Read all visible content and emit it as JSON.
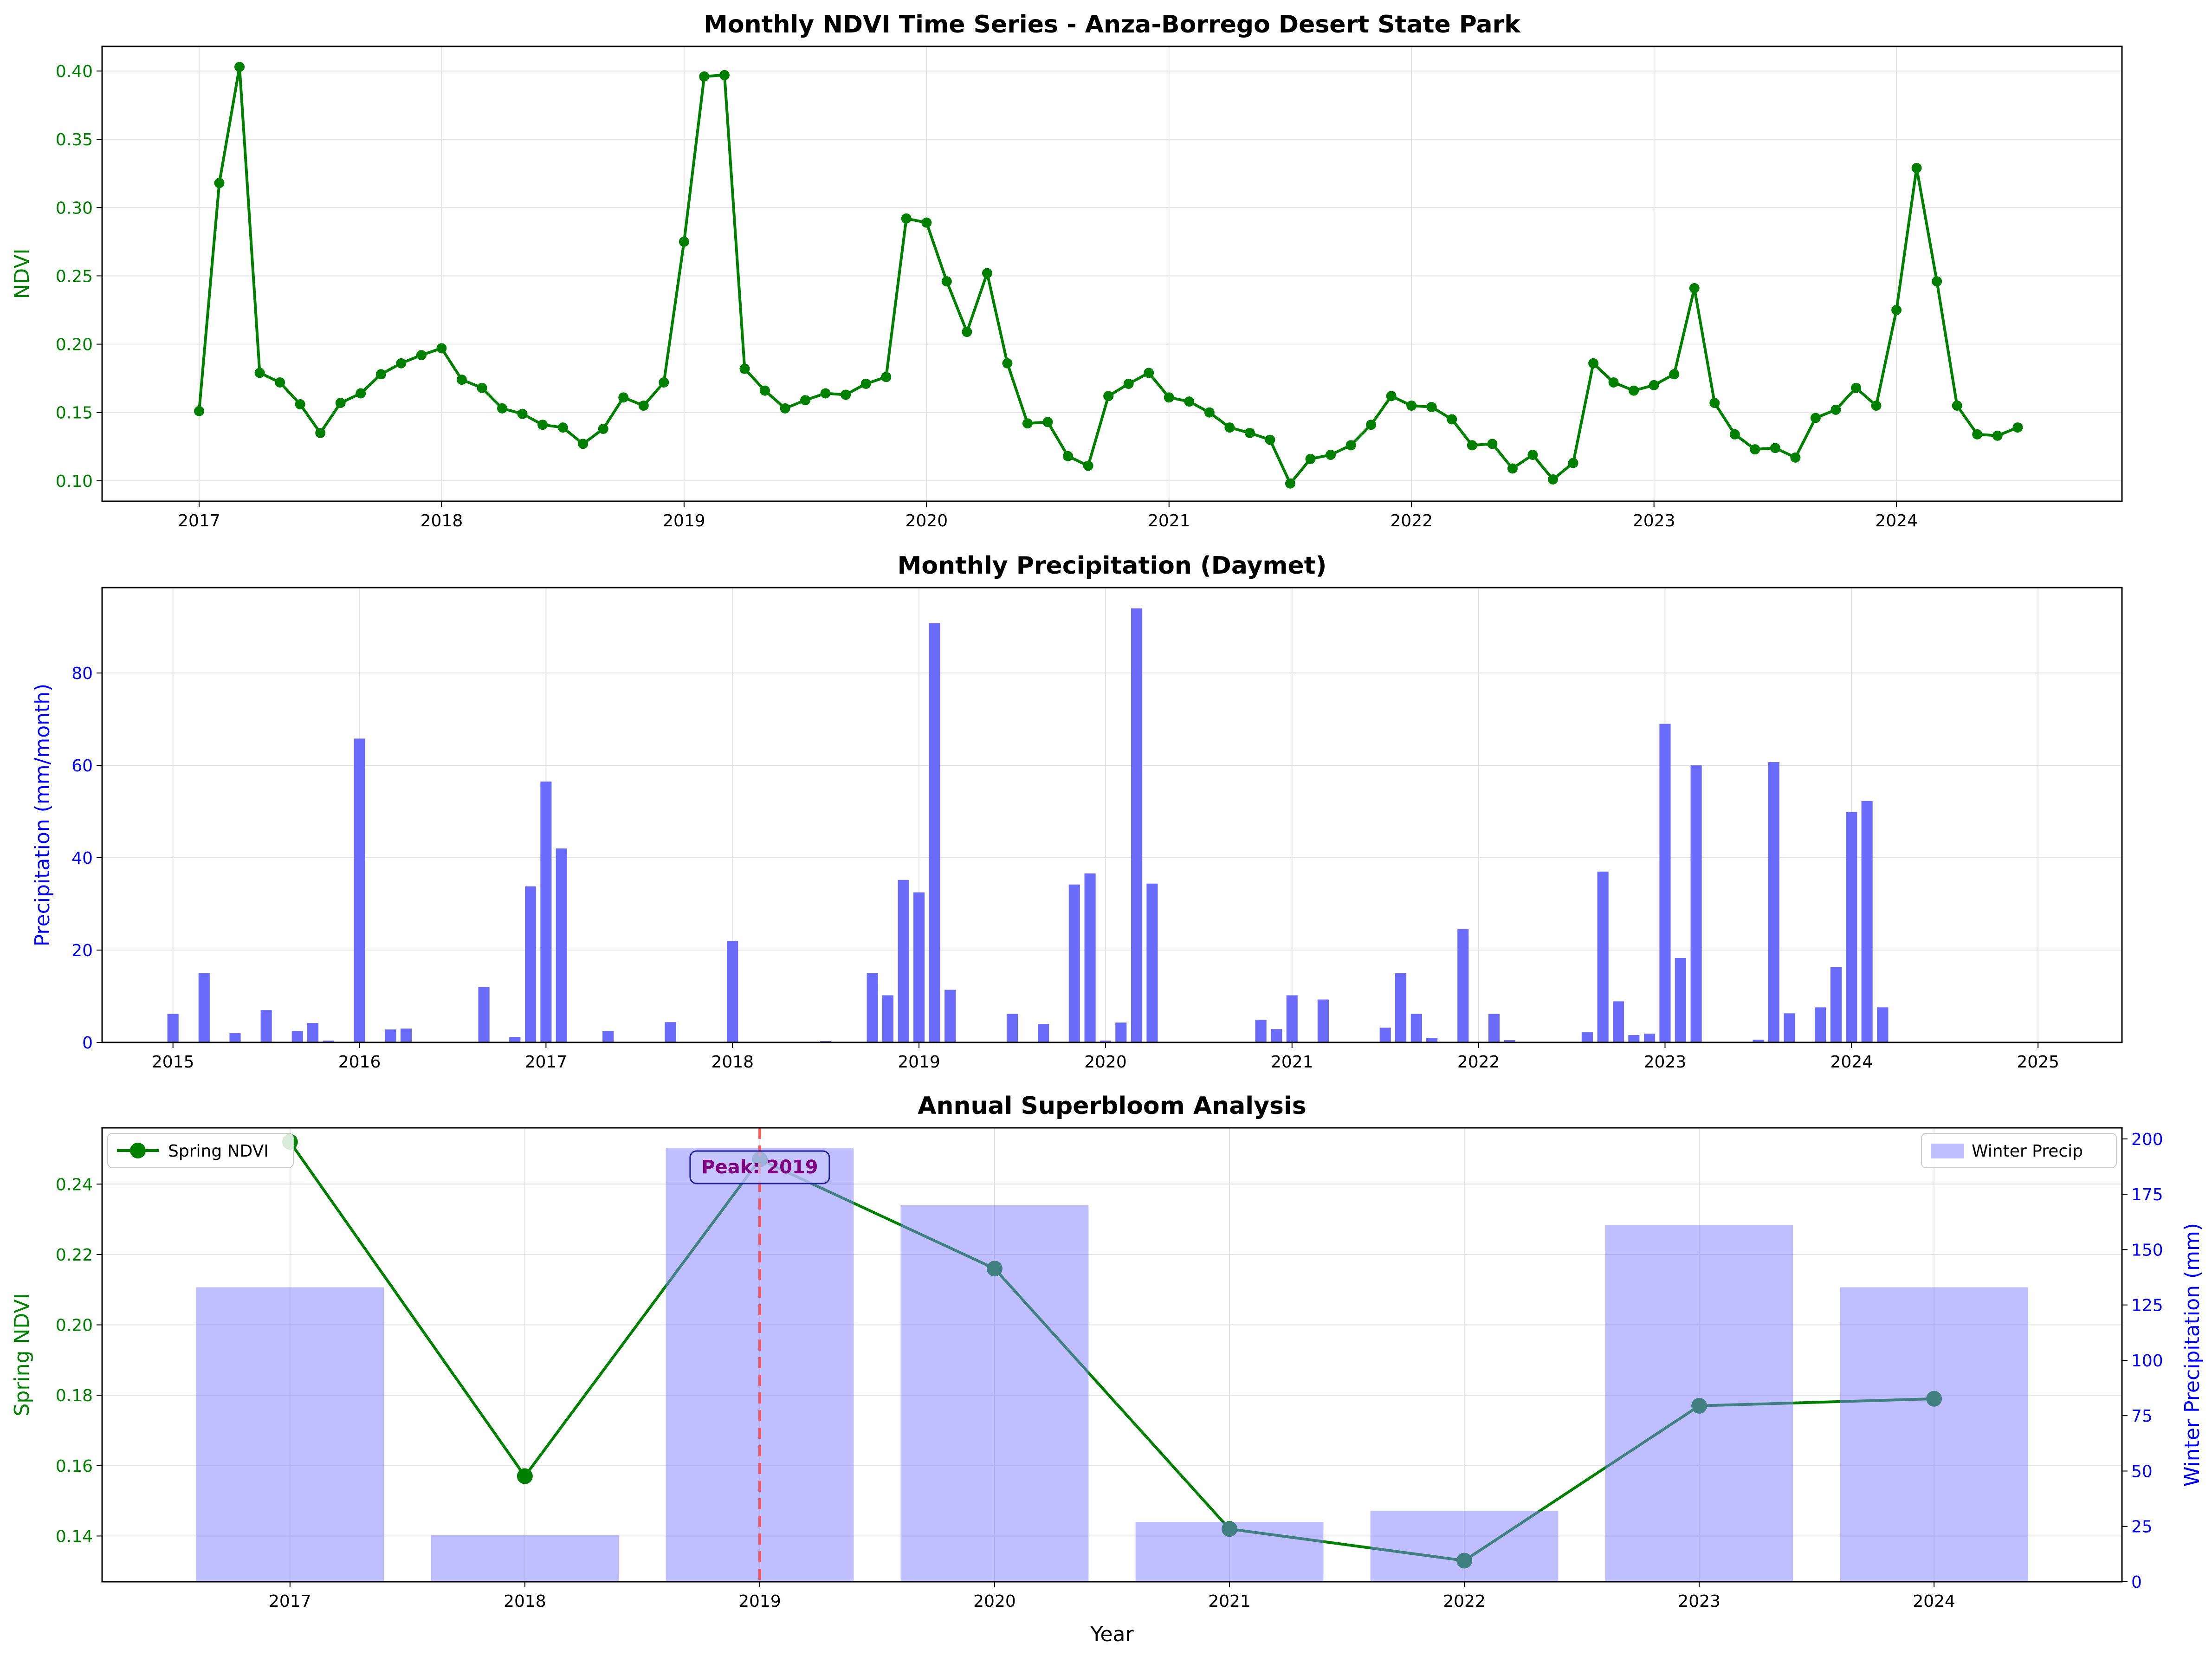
{
  "chart_data": [
    {
      "type": "line",
      "title": "Monthly NDVI Time Series - Anza-Borrego Desert State Park",
      "xlabel": "",
      "ylabel": "NDVI",
      "xlim": [
        2016.6,
        2024.93
      ],
      "ylim": [
        0.085,
        0.418
      ],
      "xticks": [
        2017,
        2018,
        2019,
        2020,
        2021,
        2022,
        2023,
        2024
      ],
      "yticks": [
        0.1,
        0.15,
        0.2,
        0.25,
        0.3,
        0.35,
        0.4
      ],
      "grid": true,
      "colors": {
        "line": "#008000",
        "ylabel": "#008000",
        "yticks": "#008000"
      },
      "series": [
        {
          "name": "NDVI",
          "x_start": 2017.0,
          "x_step": 0.083333,
          "values": [
            0.151,
            0.318,
            0.403,
            0.179,
            0.172,
            0.156,
            0.135,
            0.157,
            0.164,
            0.178,
            0.186,
            0.192,
            0.197,
            0.174,
            0.168,
            0.153,
            0.149,
            0.141,
            0.139,
            0.127,
            0.138,
            0.161,
            0.155,
            0.172,
            0.275,
            0.396,
            0.397,
            0.182,
            0.166,
            0.153,
            0.159,
            0.164,
            0.163,
            0.171,
            0.176,
            0.292,
            0.289,
            0.246,
            0.209,
            0.252,
            0.186,
            0.142,
            0.143,
            0.118,
            0.111,
            0.162,
            0.171,
            0.179,
            0.161,
            0.158,
            0.15,
            0.139,
            0.135,
            0.13,
            0.098,
            0.116,
            0.119,
            0.126,
            0.141,
            0.162,
            0.155,
            0.154,
            0.145,
            0.126,
            0.127,
            0.109,
            0.119,
            0.101,
            0.113,
            0.186,
            0.172,
            0.166,
            0.17,
            0.178,
            0.241,
            0.157,
            0.134,
            0.123,
            0.124,
            0.117,
            0.146,
            0.152,
            0.168,
            0.155,
            0.225,
            0.329,
            0.246,
            0.155,
            0.134,
            0.133,
            0.139
          ]
        }
      ]
    },
    {
      "type": "bar",
      "title": "Monthly Precipitation (Daymet)",
      "xlabel": "",
      "ylabel": "Precipitation (mm/month)",
      "xlim": [
        2014.62,
        2025.45
      ],
      "ylim": [
        0,
        98.5
      ],
      "xticks": [
        2015,
        2016,
        2017,
        2018,
        2019,
        2020,
        2021,
        2022,
        2023,
        2024,
        2025
      ],
      "yticks": [
        0,
        20,
        40,
        60,
        80
      ],
      "grid": true,
      "colors": {
        "bar": "#6b6bfa",
        "ylabel": "#0000ff",
        "yticks": "#0000ff"
      },
      "bars": [
        {
          "x": 2015.0,
          "value": 6.2
        },
        {
          "x": 2015.167,
          "value": 15.0
        },
        {
          "x": 2015.333,
          "value": 2.0
        },
        {
          "x": 2015.5,
          "value": 7.0
        },
        {
          "x": 2015.667,
          "value": 2.5
        },
        {
          "x": 2015.75,
          "value": 4.2
        },
        {
          "x": 2015.833,
          "value": 0.4
        },
        {
          "x": 2016.0,
          "value": 65.8
        },
        {
          "x": 2016.167,
          "value": 2.8
        },
        {
          "x": 2016.25,
          "value": 3.0
        },
        {
          "x": 2016.667,
          "value": 12.0
        },
        {
          "x": 2016.833,
          "value": 1.2
        },
        {
          "x": 2016.917,
          "value": 33.8
        },
        {
          "x": 2017.0,
          "value": 56.5
        },
        {
          "x": 2017.083,
          "value": 42.0
        },
        {
          "x": 2017.333,
          "value": 2.5
        },
        {
          "x": 2017.667,
          "value": 4.4
        },
        {
          "x": 2018.0,
          "value": 22.0
        },
        {
          "x": 2018.5,
          "value": 0.3
        },
        {
          "x": 2018.75,
          "value": 15.0
        },
        {
          "x": 2018.833,
          "value": 10.2
        },
        {
          "x": 2018.917,
          "value": 35.2
        },
        {
          "x": 2019.0,
          "value": 32.5
        },
        {
          "x": 2019.083,
          "value": 90.8
        },
        {
          "x": 2019.167,
          "value": 11.4
        },
        {
          "x": 2019.5,
          "value": 6.2
        },
        {
          "x": 2019.667,
          "value": 4.0
        },
        {
          "x": 2019.833,
          "value": 34.2
        },
        {
          "x": 2019.917,
          "value": 36.6
        },
        {
          "x": 2020.0,
          "value": 0.4
        },
        {
          "x": 2020.083,
          "value": 4.3
        },
        {
          "x": 2020.167,
          "value": 94.0
        },
        {
          "x": 2020.25,
          "value": 34.4
        },
        {
          "x": 2020.833,
          "value": 4.9
        },
        {
          "x": 2020.917,
          "value": 2.9
        },
        {
          "x": 2021.0,
          "value": 10.2
        },
        {
          "x": 2021.167,
          "value": 9.3
        },
        {
          "x": 2021.5,
          "value": 3.2
        },
        {
          "x": 2021.583,
          "value": 15.0
        },
        {
          "x": 2021.667,
          "value": 6.2
        },
        {
          "x": 2021.75,
          "value": 1.0
        },
        {
          "x": 2021.917,
          "value": 24.6
        },
        {
          "x": 2022.083,
          "value": 6.2
        },
        {
          "x": 2022.167,
          "value": 0.5
        },
        {
          "x": 2022.583,
          "value": 2.2
        },
        {
          "x": 2022.667,
          "value": 37.0
        },
        {
          "x": 2022.75,
          "value": 8.9
        },
        {
          "x": 2022.833,
          "value": 1.6
        },
        {
          "x": 2022.917,
          "value": 1.9
        },
        {
          "x": 2023.0,
          "value": 69.0
        },
        {
          "x": 2023.083,
          "value": 18.3
        },
        {
          "x": 2023.167,
          "value": 60.0
        },
        {
          "x": 2023.5,
          "value": 0.6
        },
        {
          "x": 2023.583,
          "value": 60.7
        },
        {
          "x": 2023.667,
          "value": 6.3
        },
        {
          "x": 2023.833,
          "value": 7.6
        },
        {
          "x": 2023.917,
          "value": 16.3
        },
        {
          "x": 2024.0,
          "value": 49.9
        },
        {
          "x": 2024.083,
          "value": 52.3
        },
        {
          "x": 2024.167,
          "value": 7.6
        }
      ]
    },
    {
      "type": "bar+line",
      "title": "Annual Superbloom Analysis",
      "xlabel": "Year",
      "ylabel": "Spring NDVI",
      "ylabel_right": "Winter Precipitation (mm)",
      "categories": [
        "2017",
        "2018",
        "2019",
        "2020",
        "2021",
        "2022",
        "2023",
        "2024"
      ],
      "ylim": [
        0.127,
        0.256
      ],
      "ylim_right": [
        0,
        205
      ],
      "yticks": [
        0.14,
        0.16,
        0.18,
        0.2,
        0.22,
        0.24
      ],
      "yticks_right": [
        0,
        25,
        50,
        75,
        100,
        125,
        150,
        175,
        200
      ],
      "grid": true,
      "colors": {
        "line": "#008000",
        "line_under_bars": "#003f7a",
        "bar": "#8080ff",
        "ylabel": "#008000",
        "ylabel_right": "#0000ff",
        "peak_line": "#ff4040",
        "peak_text": "#800080"
      },
      "series": [
        {
          "name": "Spring NDVI",
          "axis": "left",
          "kind": "line",
          "values": [
            0.252,
            0.157,
            0.247,
            0.216,
            0.142,
            0.133,
            0.177,
            0.179
          ]
        },
        {
          "name": "Winter Precip",
          "axis": "right",
          "kind": "bar",
          "values": [
            133,
            21,
            196,
            170,
            27,
            32,
            161,
            133
          ]
        }
      ],
      "legend": [
        {
          "label": "Spring NDVI",
          "position": "top-left"
        },
        {
          "label": "Winter Precip",
          "position": "top-right"
        }
      ],
      "annotation": {
        "text": "Peak: 2019",
        "x": 2019
      }
    }
  ]
}
